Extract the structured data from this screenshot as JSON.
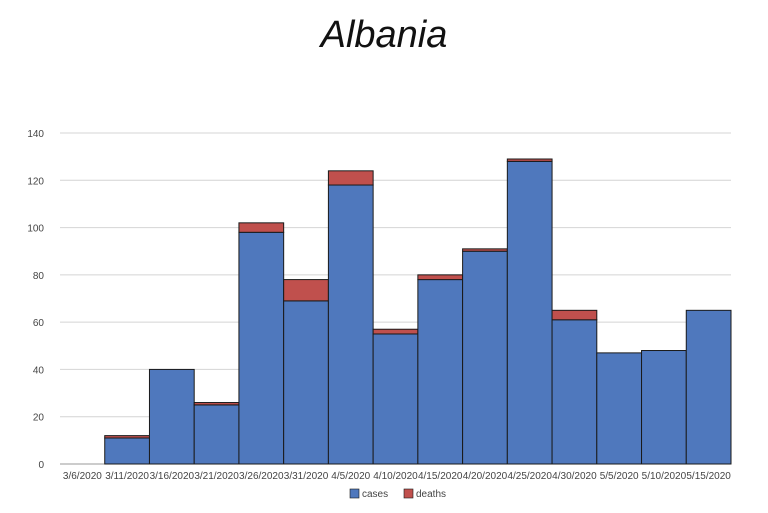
{
  "chart_data": {
    "type": "bar",
    "stacked": true,
    "title": "Albania",
    "xlabel": "",
    "ylabel": "",
    "categories": [
      "3/6/2020",
      "3/11/2020",
      "3/16/2020",
      "3/21/2020",
      "3/26/2020",
      "3/31/2020",
      "4/5/2020",
      "4/10/2020",
      "4/15/2020",
      "4/20/2020",
      "4/25/2020",
      "4/30/2020",
      "5/5/2020",
      "5/10/2020",
      "5/15/2020"
    ],
    "series": [
      {
        "name": "cases",
        "color": "#4f78bd",
        "values": [
          0,
          11,
          40,
          25,
          98,
          69,
          118,
          55,
          78,
          90,
          128,
          61,
          47,
          48,
          65
        ]
      },
      {
        "name": "deaths",
        "color": "#c0504d",
        "values": [
          0,
          1,
          0,
          1,
          4,
          9,
          6,
          2,
          2,
          1,
          1,
          4,
          0,
          0,
          0
        ]
      }
    ],
    "ylim": [
      0,
      140
    ],
    "yticks": [
      0,
      20,
      40,
      60,
      80,
      100,
      120,
      140
    ],
    "grid": true,
    "legend_position": "bottom-center"
  }
}
